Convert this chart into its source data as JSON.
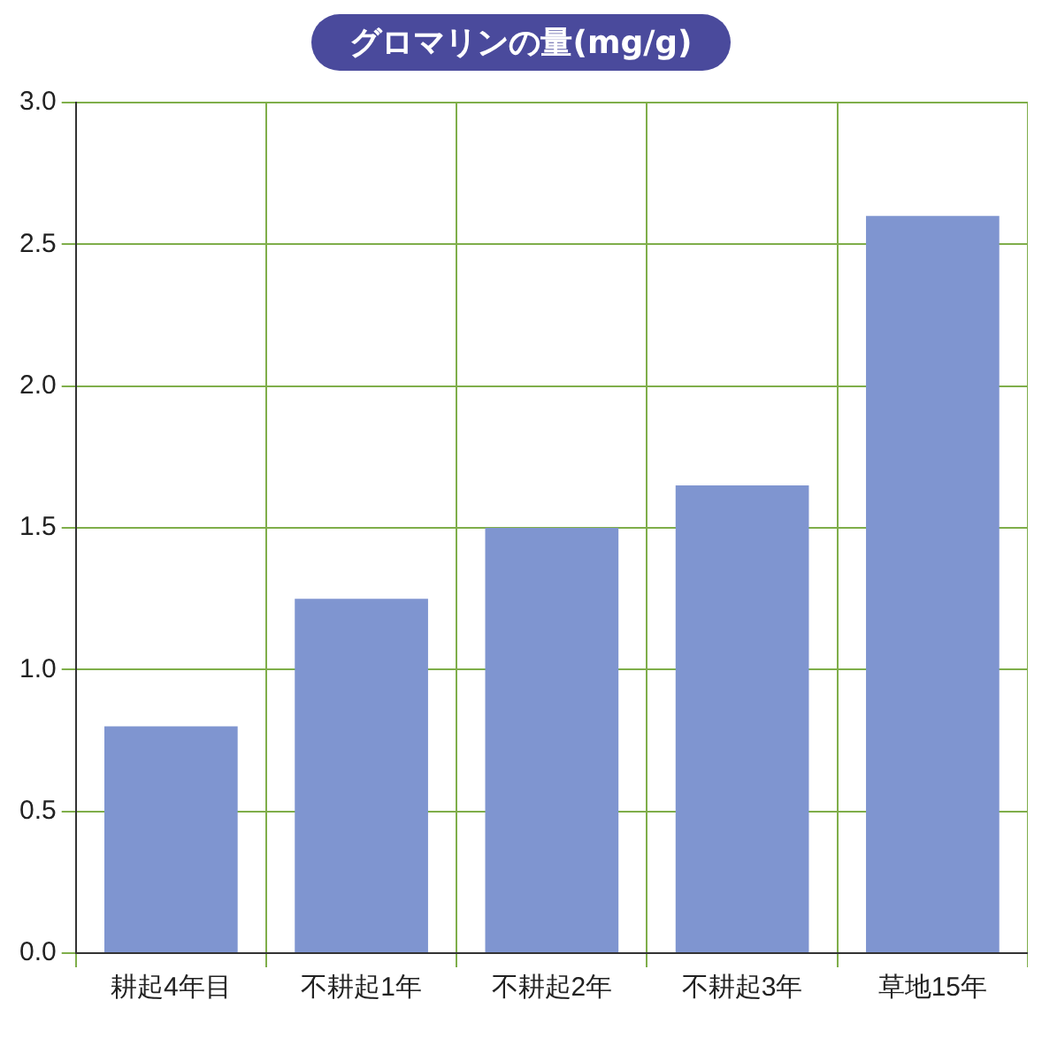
{
  "chart_data": {
    "type": "bar",
    "title": "グロマリンの量(mg/g)",
    "categories": [
      "耕起4年目",
      "不耕起1年",
      "不耕起2年",
      "不耕起3年",
      "草地15年"
    ],
    "values": [
      0.8,
      1.25,
      1.5,
      1.65,
      2.6
    ],
    "color": "#7f95d0",
    "ylim": [
      0,
      3
    ],
    "yticks": [
      {
        "value": 0,
        "label": "0.0"
      },
      {
        "value": 0.5,
        "label": "0.5"
      },
      {
        "value": 1,
        "label": "1.0"
      },
      {
        "value": 1.5,
        "label": "1.5"
      },
      {
        "value": 2,
        "label": "2.0"
      },
      {
        "value": 2.5,
        "label": "2.5"
      },
      {
        "value": 3,
        "label": "3.0"
      }
    ],
    "grid": true
  }
}
